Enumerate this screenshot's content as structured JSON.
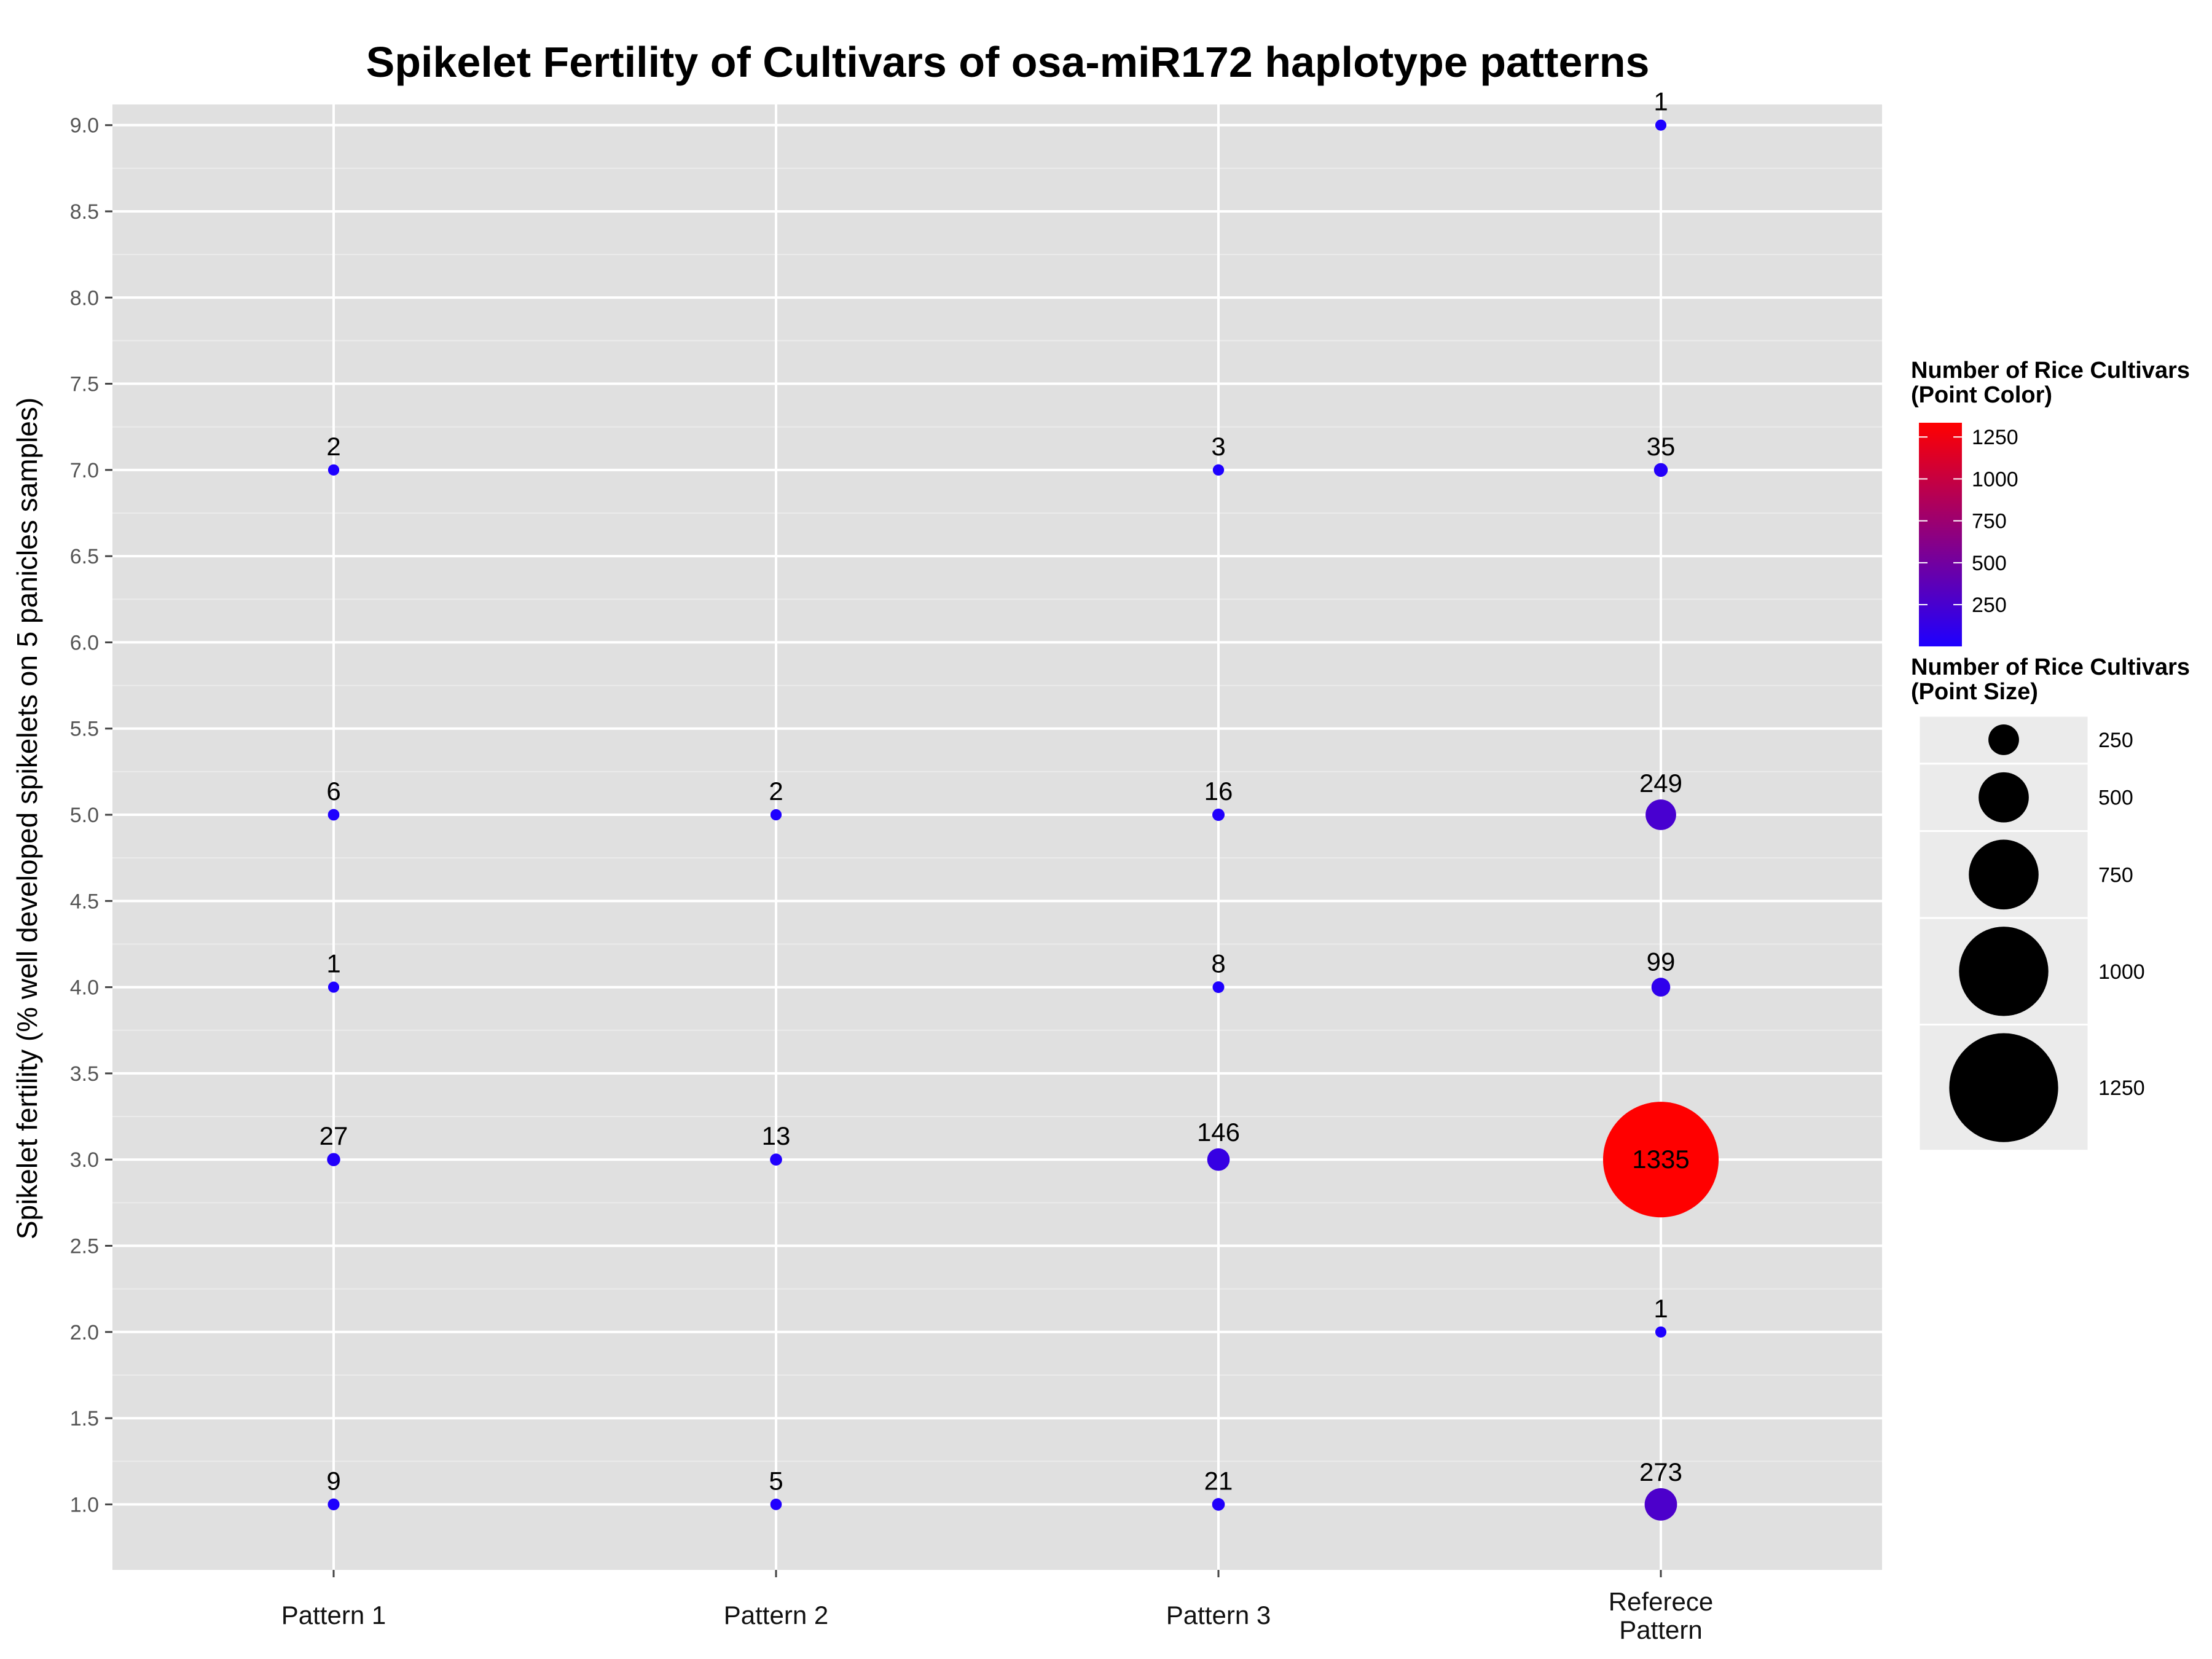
{
  "chart_data": {
    "type": "scatter",
    "title": "Spikelet Fertility of Cultivars of osa-miR172 haplotype patterns",
    "xlabel": "",
    "ylabel": "Spikelet fertility (% well developed spikelets on 5 panicles samples)",
    "categories": [
      "Pattern 1",
      "Pattern 2",
      "Pattern 3",
      "Referece Pattern"
    ],
    "category_lines": [
      [
        "Pattern 1"
      ],
      [
        "Pattern 2"
      ],
      [
        "Pattern 3"
      ],
      [
        "Referece",
        "Pattern"
      ]
    ],
    "ylim": [
      0.62,
      9.12
    ],
    "yticks": [
      "1.0",
      "1.5",
      "2.0",
      "2.5",
      "3.0",
      "3.5",
      "4.0",
      "4.5",
      "5.0",
      "5.5",
      "6.0",
      "6.5",
      "7.0",
      "7.5",
      "8.0",
      "8.5",
      "9.0"
    ],
    "grid": true,
    "points": [
      {
        "pattern": "Pattern 1",
        "y": 7.0,
        "count": 2
      },
      {
        "pattern": "Pattern 1",
        "y": 5.0,
        "count": 6
      },
      {
        "pattern": "Pattern 1",
        "y": 4.0,
        "count": 1
      },
      {
        "pattern": "Pattern 1",
        "y": 3.0,
        "count": 27
      },
      {
        "pattern": "Pattern 1",
        "y": 1.0,
        "count": 9
      },
      {
        "pattern": "Pattern 2",
        "y": 5.0,
        "count": 2
      },
      {
        "pattern": "Pattern 2",
        "y": 3.0,
        "count": 13
      },
      {
        "pattern": "Pattern 2",
        "y": 1.0,
        "count": 5
      },
      {
        "pattern": "Pattern 3",
        "y": 7.0,
        "count": 3
      },
      {
        "pattern": "Pattern 3",
        "y": 5.0,
        "count": 16
      },
      {
        "pattern": "Pattern 3",
        "y": 4.0,
        "count": 8
      },
      {
        "pattern": "Pattern 3",
        "y": 3.0,
        "count": 146
      },
      {
        "pattern": "Pattern 3",
        "y": 1.0,
        "count": 21
      },
      {
        "pattern": "Referece Pattern",
        "y": 9.0,
        "count": 1
      },
      {
        "pattern": "Referece Pattern",
        "y": 7.0,
        "count": 35
      },
      {
        "pattern": "Referece Pattern",
        "y": 5.0,
        "count": 249
      },
      {
        "pattern": "Referece Pattern",
        "y": 4.0,
        "count": 99
      },
      {
        "pattern": "Referece Pattern",
        "y": 3.0,
        "count": 1335
      },
      {
        "pattern": "Referece Pattern",
        "y": 2.0,
        "count": 1
      },
      {
        "pattern": "Referece Pattern",
        "y": 1.0,
        "count": 273
      }
    ],
    "color_scale": {
      "low": "#1E00FF",
      "high": "#FF0000",
      "min": 1,
      "max": 1335
    },
    "legend": {
      "placement": "right",
      "color_title_lines": [
        "Number of Rice Cultivars",
        "(Point Color)"
      ],
      "color_breaks": [
        "1250",
        "1000",
        "750",
        "500",
        "250"
      ],
      "size_title_lines": [
        "Number of Rice Cultivars",
        "(Point Size)"
      ],
      "size_breaks": [
        "250",
        "500",
        "750",
        "1000",
        "1250"
      ]
    }
  },
  "colors": {
    "panel_background": "#E0E0E0",
    "grid_major": "#FFFFFF",
    "grid_minor": "#EBEBEB"
  }
}
